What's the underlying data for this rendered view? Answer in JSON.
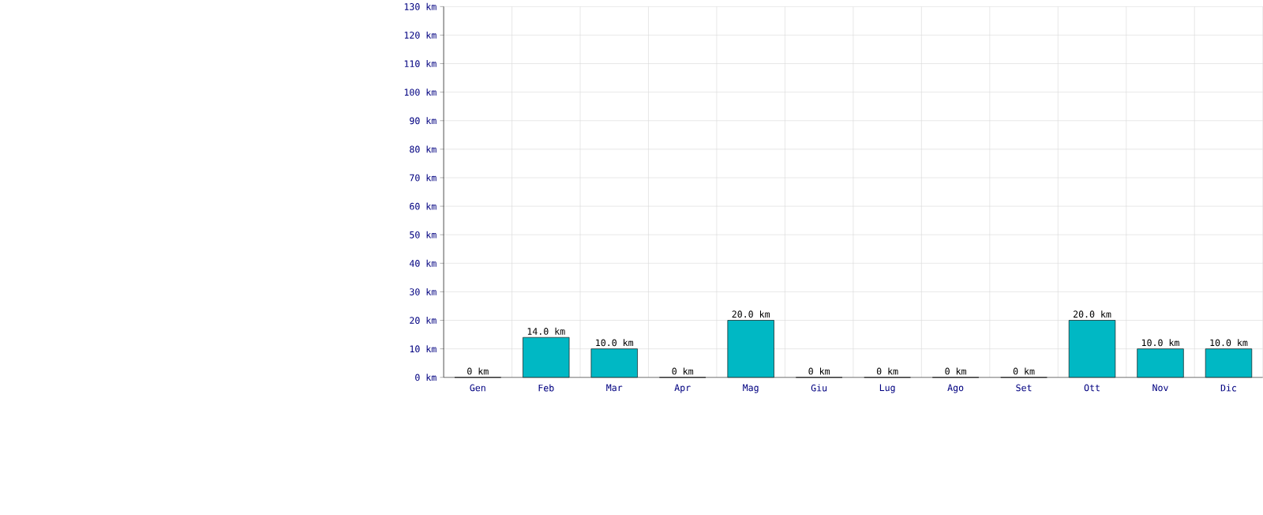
{
  "chart_data": {
    "type": "bar",
    "categories": [
      "Gen",
      "Feb",
      "Mar",
      "Apr",
      "Mag",
      "Giu",
      "Lug",
      "Ago",
      "Set",
      "Ott",
      "Nov",
      "Dic"
    ],
    "values": [
      0,
      14,
      10,
      0,
      20,
      0,
      0,
      0,
      0,
      20,
      10,
      10
    ],
    "value_labels": [
      "0 km",
      "14.0 km",
      "10.0 km",
      "0 km",
      "20.0 km",
      "0 km",
      "0 km",
      "0 km",
      "0 km",
      "20.0 km",
      "10.0 km",
      "10.0 km"
    ],
    "color": "#00b8c4",
    "ylim": [
      0,
      130
    ],
    "yticks": [
      {
        "value": 0,
        "label": "0 km"
      },
      {
        "value": 10,
        "label": "10 km"
      },
      {
        "value": 20,
        "label": "20 km"
      },
      {
        "value": 30,
        "label": "30 km"
      },
      {
        "value": 40,
        "label": "40 km"
      },
      {
        "value": 50,
        "label": "50 km"
      },
      {
        "value": 60,
        "label": "60 km"
      },
      {
        "value": 70,
        "label": "70 km"
      },
      {
        "value": 80,
        "label": "80 km"
      },
      {
        "value": 90,
        "label": "90 km"
      },
      {
        "value": 100,
        "label": "100 km"
      },
      {
        "value": 110,
        "label": "110 km"
      },
      {
        "value": 120,
        "label": "120 km"
      },
      {
        "value": 130,
        "label": "130 km"
      }
    ],
    "grid": true
  }
}
